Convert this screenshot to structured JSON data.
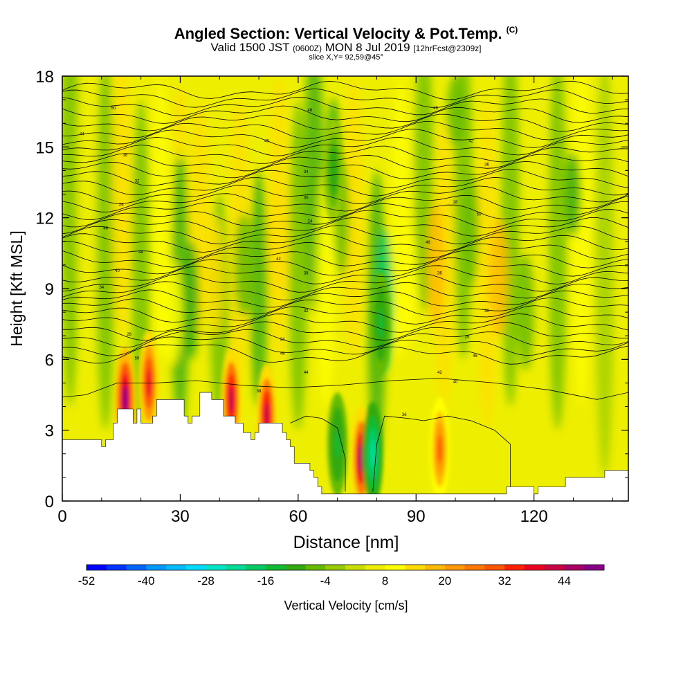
{
  "titles": {
    "main": "Angled Section: Vertical Velocity & Pot.Temp.",
    "main_unit": "(C)",
    "valid_a": "Valid 1500 JST",
    "valid_b": "(0600Z)",
    "valid_c": "MON 8 Jul 2019",
    "valid_d": "[12hrFcst@2309z]",
    "slice": "slice X,Y= 92,59@45°"
  },
  "chart_data": {
    "type": "heatmap",
    "title": "Angled Section: Vertical Velocity & Pot.Temp. (C)",
    "xlabel": "Distance [nm]",
    "ylabel": "Height [Kft MSL]",
    "xlim": [
      0,
      144
    ],
    "ylim": [
      0,
      18
    ],
    "x_ticks": [
      0,
      30,
      60,
      90,
      120
    ],
    "y_ticks": [
      0,
      3,
      6,
      9,
      12,
      15,
      18
    ],
    "colorbar": {
      "label": "Vertical Velocity [cm/s]",
      "ticks": [
        -52,
        -40,
        -28,
        -16,
        -4,
        8,
        20,
        32,
        44
      ],
      "min": -52,
      "max": 52,
      "colors": [
        "#0000ff",
        "#0033ff",
        "#0066ff",
        "#0099ff",
        "#00bbff",
        "#00ddff",
        "#00e6c8",
        "#00dd99",
        "#00cc66",
        "#11bb33",
        "#33aa11",
        "#66bb00",
        "#99cc00",
        "#ccdd00",
        "#eeee00",
        "#ffff00",
        "#ffdd00",
        "#ffbb00",
        "#ff9900",
        "#ff7700",
        "#ff5500",
        "#ff2200",
        "#ee0022",
        "#cc0044",
        "#aa0066",
        "#880088"
      ]
    },
    "terrain_kft": [
      [
        0,
        2.6
      ],
      [
        7,
        2.6
      ],
      [
        10,
        2.6
      ],
      [
        10,
        2.3
      ],
      [
        11,
        2.3
      ],
      [
        11,
        2.6
      ],
      [
        13,
        2.6
      ],
      [
        13,
        3.3
      ],
      [
        14,
        3.3
      ],
      [
        14,
        3.9
      ],
      [
        18,
        3.9
      ],
      [
        18,
        3.3
      ],
      [
        19,
        3.3
      ],
      [
        19,
        3.9
      ],
      [
        20,
        3.9
      ],
      [
        20,
        3.3
      ],
      [
        23,
        3.3
      ],
      [
        23,
        3.6
      ],
      [
        24,
        3.6
      ],
      [
        24,
        4.3
      ],
      [
        31,
        4.3
      ],
      [
        31,
        3.6
      ],
      [
        32,
        3.6
      ],
      [
        32,
        3.3
      ],
      [
        33,
        3.3
      ],
      [
        33,
        3.6
      ],
      [
        35,
        3.6
      ],
      [
        35,
        4.6
      ],
      [
        38,
        4.6
      ],
      [
        38,
        4.3
      ],
      [
        41,
        4.3
      ],
      [
        41,
        3.6
      ],
      [
        44,
        3.6
      ],
      [
        44,
        3.3
      ],
      [
        46,
        3.3
      ],
      [
        46,
        2.9
      ],
      [
        48,
        2.9
      ],
      [
        48,
        2.6
      ],
      [
        49,
        2.6
      ],
      [
        49,
        2.9
      ],
      [
        50,
        2.9
      ],
      [
        50,
        3.3
      ],
      [
        56,
        3.3
      ],
      [
        56,
        2.9
      ],
      [
        57,
        2.9
      ],
      [
        57,
        2.6
      ],
      [
        58,
        2.6
      ],
      [
        58,
        2.3
      ],
      [
        59,
        2.3
      ],
      [
        59,
        1.6
      ],
      [
        63,
        1.6
      ],
      [
        63,
        1.3
      ],
      [
        64,
        1.3
      ],
      [
        64,
        1.0
      ],
      [
        65,
        1.0
      ],
      [
        65,
        0.6
      ],
      [
        66,
        0.6
      ],
      [
        66,
        0.3
      ],
      [
        113,
        0.3
      ],
      [
        113,
        0.6
      ],
      [
        120,
        0.6
      ],
      [
        120,
        0.3
      ],
      [
        121,
        0.3
      ],
      [
        121,
        0.6
      ],
      [
        128,
        0.6
      ],
      [
        128,
        1.0
      ],
      [
        138,
        1.0
      ],
      [
        138,
        1.3
      ],
      [
        144,
        1.3
      ]
    ],
    "theta_contour_labels": [
      "50",
      "48",
      "46",
      "44",
      "42",
      "40",
      "38",
      "36",
      "34",
      "32",
      "30",
      "28",
      "26",
      "24"
    ],
    "regions": [
      {
        "type": "updraft",
        "x": 16,
        "y": 4.3,
        "w_peak": 48
      },
      {
        "type": "updraft",
        "x": 22,
        "y": 5.0,
        "w_peak": 36
      },
      {
        "type": "updraft",
        "x": 43,
        "y": 4.3,
        "w_peak": 40
      },
      {
        "type": "updraft",
        "x": 52,
        "y": 3.6,
        "w_peak": 40
      },
      {
        "type": "updraft",
        "x": 76,
        "y": 1.8,
        "w_peak": 44
      },
      {
        "type": "updraft",
        "x": 96,
        "y": 2.2,
        "w_peak": 28
      },
      {
        "type": "downdraft",
        "x": 79,
        "y": 2.0,
        "w_peak": -24
      },
      {
        "type": "downdraft",
        "x": 70,
        "y": 2.4,
        "w_peak": -14
      },
      {
        "type": "downdraft",
        "x": 81,
        "y": 7.5,
        "w_peak": -14
      },
      {
        "type": "downdraft",
        "x": 69,
        "y": 14.0,
        "w_peak": -10
      }
    ]
  }
}
